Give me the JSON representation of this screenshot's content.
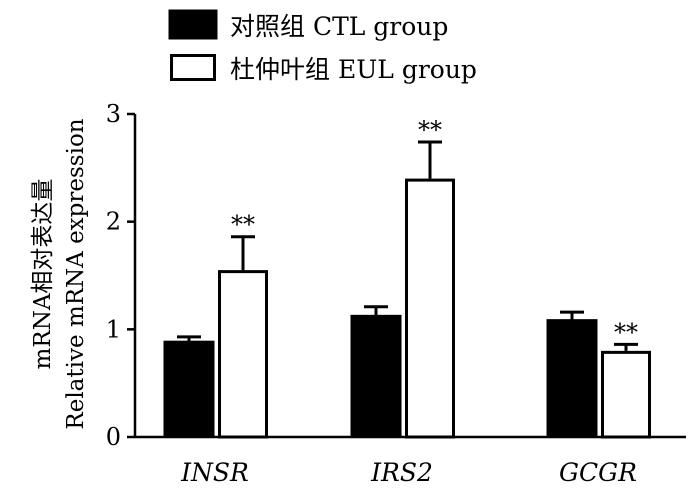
{
  "chart_data": {
    "type": "bar",
    "title": "",
    "categories": [
      "INSR",
      "IRS2",
      "GCGR"
    ],
    "series": [
      {
        "name": "对照组 CTL group",
        "color": "#000000",
        "fill": "solid",
        "values": [
          0.89,
          1.13,
          1.09
        ],
        "errors": [
          0.04,
          0.08,
          0.07
        ],
        "significance": [
          "",
          "",
          ""
        ]
      },
      {
        "name": "杜仲叶组 EUL group",
        "color": "#ffffff",
        "stroke": "#000000",
        "fill": "hollow",
        "values": [
          1.55,
          2.4,
          0.8
        ],
        "errors": [
          0.31,
          0.34,
          0.06
        ],
        "significance": [
          "**",
          "**",
          "**"
        ]
      }
    ],
    "xlabel": "",
    "ylabel": [
      "mRNA相对表达量",
      "Relative mRNA expression"
    ],
    "ylim": [
      0,
      3
    ],
    "yticks": [
      0,
      1,
      2,
      3
    ],
    "legend_position": "top-left",
    "grid": false
  }
}
